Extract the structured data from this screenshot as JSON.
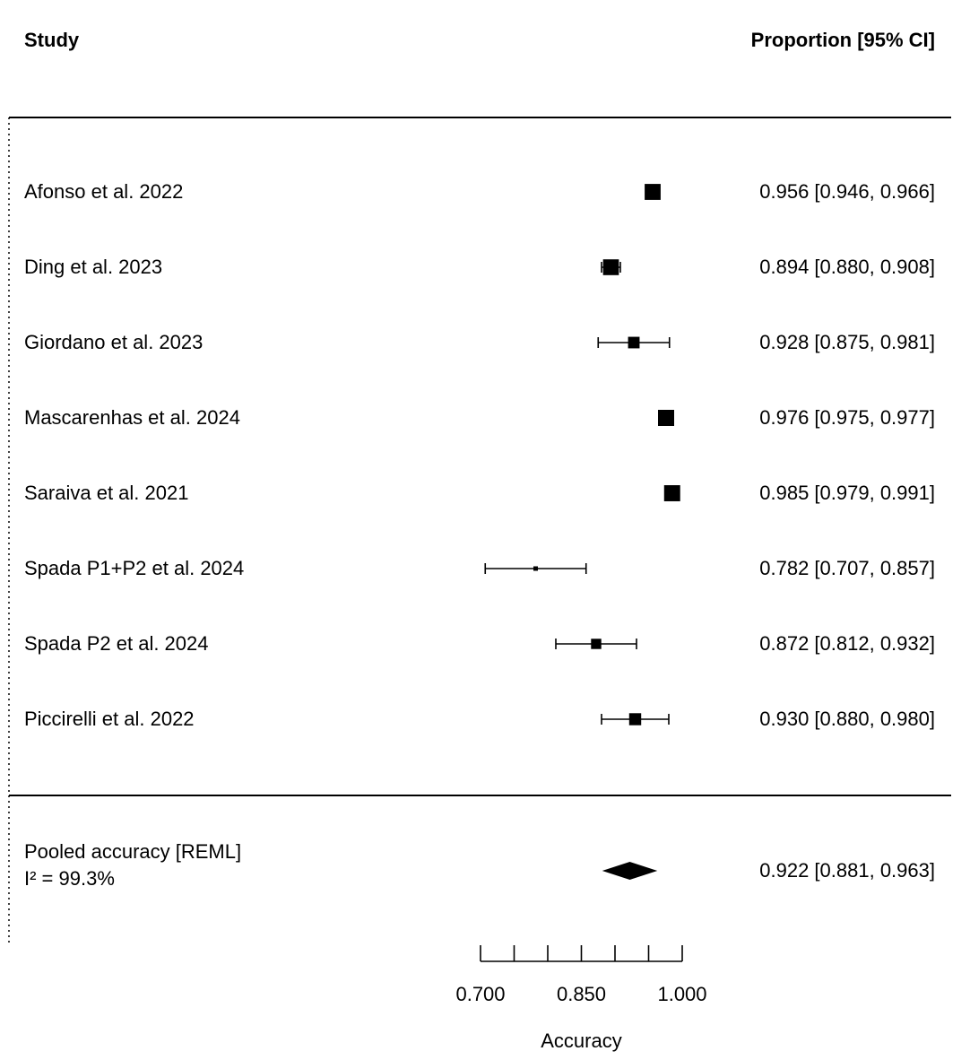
{
  "chart_data": {
    "type": "forest",
    "headers": {
      "study": "Study",
      "estimate": "Proportion [95% CI]"
    },
    "studies": [
      {
        "label": "Afonso et al. 2022",
        "est": 0.956,
        "lo": 0.946,
        "hi": 0.966,
        "text": "0.956 [0.946, 0.966]"
      },
      {
        "label": "Ding et al. 2023",
        "est": 0.894,
        "lo": 0.88,
        "hi": 0.908,
        "text": "0.894 [0.880, 0.908]"
      },
      {
        "label": "Giordano et al. 2023",
        "est": 0.928,
        "lo": 0.875,
        "hi": 0.981,
        "text": "0.928 [0.875, 0.981]"
      },
      {
        "label": "Mascarenhas et al. 2024",
        "est": 0.976,
        "lo": 0.975,
        "hi": 0.977,
        "text": "0.976 [0.975, 0.977]"
      },
      {
        "label": "Saraiva et al. 2021",
        "est": 0.985,
        "lo": 0.979,
        "hi": 0.991,
        "text": "0.985 [0.979, 0.991]"
      },
      {
        "label": "Spada P1+P2 et al. 2024",
        "est": 0.782,
        "lo": 0.707,
        "hi": 0.857,
        "text": "0.782 [0.707, 0.857]"
      },
      {
        "label": "Spada P2 et al. 2024",
        "est": 0.872,
        "lo": 0.812,
        "hi": 0.932,
        "text": "0.872 [0.812, 0.932]"
      },
      {
        "label": "Piccirelli et al. 2022",
        "est": 0.93,
        "lo": 0.88,
        "hi": 0.98,
        "text": "0.930 [0.880, 0.980]"
      }
    ],
    "pooled": {
      "label": "Pooled accuracy [REML]",
      "heterogeneity": "I² = 99.3%",
      "est": 0.922,
      "lo": 0.881,
      "hi": 0.963,
      "text": "0.922 [0.881, 0.963]"
    },
    "xaxis": {
      "label": "Accuracy",
      "range": [
        0.7,
        1.0
      ],
      "minor_ticks": [
        0.7,
        0.75,
        0.8,
        0.85,
        0.9,
        0.95,
        1.0
      ],
      "tick_labels": [
        {
          "value": 0.7,
          "text": "0.700"
        },
        {
          "value": 0.85,
          "text": "0.850"
        },
        {
          "value": 1.0,
          "text": "1.000"
        }
      ]
    }
  }
}
